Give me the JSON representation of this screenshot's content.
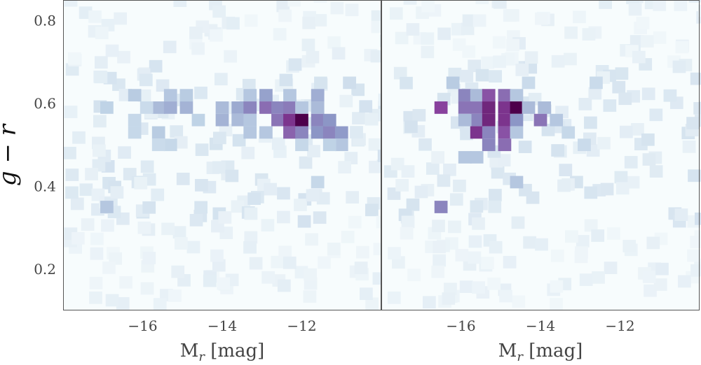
{
  "chart_data": [
    {
      "type": "heatmap",
      "panel": "left",
      "xlabel": "M$_r$ [mag]",
      "xlabel_main": "M",
      "xlabel_sub": "r",
      "xlabel_unit": " [mag]",
      "ylabel": "g − r",
      "xlim": [
        -18.0,
        -10.0
      ],
      "ylim": [
        0.1,
        0.85
      ],
      "x_reversed": true,
      "xticks": [
        -16,
        -14,
        -12
      ],
      "xtick_labels": [
        "−16",
        "−14",
        "−12"
      ],
      "yticks": [
        0.2,
        0.4,
        0.6,
        0.8
      ],
      "ytick_labels": [
        "0.2",
        "0.4",
        "0.6",
        "0.8"
      ],
      "grid": false,
      "bin_width_x": 0.33,
      "bin_width_y": 0.03,
      "colormap": [
        "#f7fcfd",
        "#bfd3e6",
        "#8c96c6",
        "#88419d",
        "#4d004b"
      ],
      "cells": [
        {
          "x": -15.6,
          "y": 0.59,
          "v": 0.35
        },
        {
          "x": -15.3,
          "y": 0.59,
          "v": 0.4
        },
        {
          "x": -14.9,
          "y": 0.59,
          "v": 0.38
        },
        {
          "x": -14.0,
          "y": 0.59,
          "v": 0.35
        },
        {
          "x": -13.6,
          "y": 0.59,
          "v": 0.42
        },
        {
          "x": -13.3,
          "y": 0.59,
          "v": 0.55
        },
        {
          "x": -12.9,
          "y": 0.59,
          "v": 0.62
        },
        {
          "x": -12.6,
          "y": 0.59,
          "v": 0.55
        },
        {
          "x": -12.3,
          "y": 0.59,
          "v": 0.58
        },
        {
          "x": -12.0,
          "y": 0.59,
          "v": 0.3
        },
        {
          "x": -11.6,
          "y": 0.59,
          "v": 0.35
        },
        {
          "x": -12.6,
          "y": 0.56,
          "v": 0.6
        },
        {
          "x": -12.3,
          "y": 0.56,
          "v": 0.8
        },
        {
          "x": -12.0,
          "y": 0.56,
          "v": 1.0
        },
        {
          "x": -11.6,
          "y": 0.56,
          "v": 0.55
        },
        {
          "x": -11.3,
          "y": 0.56,
          "v": 0.5
        },
        {
          "x": -13.6,
          "y": 0.56,
          "v": 0.35
        },
        {
          "x": -13.3,
          "y": 0.56,
          "v": 0.3
        },
        {
          "x": -14.0,
          "y": 0.56,
          "v": 0.38
        },
        {
          "x": -12.3,
          "y": 0.53,
          "v": 0.65
        },
        {
          "x": -12.0,
          "y": 0.53,
          "v": 0.55
        },
        {
          "x": -11.6,
          "y": 0.53,
          "v": 0.5
        },
        {
          "x": -11.3,
          "y": 0.53,
          "v": 0.55
        },
        {
          "x": -11.0,
          "y": 0.53,
          "v": 0.48
        },
        {
          "x": -12.9,
          "y": 0.53,
          "v": 0.3
        },
        {
          "x": -13.3,
          "y": 0.53,
          "v": 0.3
        },
        {
          "x": -15.6,
          "y": 0.53,
          "v": 0.28
        },
        {
          "x": -16.2,
          "y": 0.53,
          "v": 0.22
        },
        {
          "x": -16.9,
          "y": 0.59,
          "v": 0.25
        },
        {
          "x": -16.2,
          "y": 0.62,
          "v": 0.28
        },
        {
          "x": -15.3,
          "y": 0.62,
          "v": 0.3
        },
        {
          "x": -14.9,
          "y": 0.62,
          "v": 0.28
        },
        {
          "x": -13.3,
          "y": 0.62,
          "v": 0.3
        },
        {
          "x": -12.9,
          "y": 0.62,
          "v": 0.45
        },
        {
          "x": -12.3,
          "y": 0.62,
          "v": 0.3
        },
        {
          "x": -11.6,
          "y": 0.62,
          "v": 0.4
        },
        {
          "x": -11.0,
          "y": 0.5,
          "v": 0.3
        },
        {
          "x": -11.3,
          "y": 0.5,
          "v": 0.25
        },
        {
          "x": -12.0,
          "y": 0.5,
          "v": 0.22
        },
        {
          "x": -16.9,
          "y": 0.35,
          "v": 0.3
        },
        {
          "x": -16.2,
          "y": 0.56,
          "v": 0.22
        },
        {
          "x": -15.9,
          "y": 0.59,
          "v": 0.2
        },
        {
          "x": -14.6,
          "y": 0.56,
          "v": 0.25
        },
        {
          "x": -15.3,
          "y": 0.5,
          "v": 0.22
        },
        {
          "x": -15.6,
          "y": 0.5,
          "v": 0.2
        },
        {
          "x": -11.6,
          "y": 0.41,
          "v": 0.22
        },
        {
          "x": -10.8,
          "y": 0.65,
          "v": 0.18
        }
      ]
    },
    {
      "type": "heatmap",
      "panel": "right",
      "xlabel": "M$_r$ [mag]",
      "xlabel_main": "M",
      "xlabel_sub": "r",
      "xlabel_unit": " [mag]",
      "xlim": [
        -18.0,
        -10.0
      ],
      "ylim": [
        0.1,
        0.85
      ],
      "x_reversed": true,
      "xticks": [
        -16,
        -14,
        -12
      ],
      "xtick_labels": [
        "−16",
        "−14",
        "−12"
      ],
      "grid": false,
      "bin_width_x": 0.33,
      "bin_width_y": 0.03,
      "colormap": [
        "#f7fcfd",
        "#bfd3e6",
        "#8c96c6",
        "#88419d",
        "#4d004b"
      ],
      "cells": [
        {
          "x": -16.5,
          "y": 0.59,
          "v": 0.75
        },
        {
          "x": -15.9,
          "y": 0.59,
          "v": 0.6
        },
        {
          "x": -15.6,
          "y": 0.59,
          "v": 0.6
        },
        {
          "x": -15.3,
          "y": 0.59,
          "v": 0.85
        },
        {
          "x": -14.9,
          "y": 0.59,
          "v": 0.8
        },
        {
          "x": -14.6,
          "y": 0.59,
          "v": 1.0
        },
        {
          "x": -14.3,
          "y": 0.59,
          "v": 0.35
        },
        {
          "x": -13.9,
          "y": 0.59,
          "v": 0.35
        },
        {
          "x": -15.6,
          "y": 0.56,
          "v": 0.55
        },
        {
          "x": -15.3,
          "y": 0.56,
          "v": 0.85
        },
        {
          "x": -14.9,
          "y": 0.56,
          "v": 0.8
        },
        {
          "x": -14.6,
          "y": 0.56,
          "v": 0.5
        },
        {
          "x": -14.0,
          "y": 0.56,
          "v": 0.6
        },
        {
          "x": -13.6,
          "y": 0.56,
          "v": 0.3
        },
        {
          "x": -15.6,
          "y": 0.53,
          "v": 0.8
        },
        {
          "x": -15.3,
          "y": 0.53,
          "v": 0.55
        },
        {
          "x": -14.9,
          "y": 0.53,
          "v": 0.7
        },
        {
          "x": -14.6,
          "y": 0.53,
          "v": 0.3
        },
        {
          "x": -15.3,
          "y": 0.5,
          "v": 0.55
        },
        {
          "x": -14.9,
          "y": 0.5,
          "v": 0.62
        },
        {
          "x": -15.9,
          "y": 0.62,
          "v": 0.55
        },
        {
          "x": -15.6,
          "y": 0.62,
          "v": 0.35
        },
        {
          "x": -15.3,
          "y": 0.62,
          "v": 0.7
        },
        {
          "x": -14.9,
          "y": 0.62,
          "v": 0.62
        },
        {
          "x": -14.6,
          "y": 0.62,
          "v": 0.3
        },
        {
          "x": -15.9,
          "y": 0.56,
          "v": 0.35
        },
        {
          "x": -15.9,
          "y": 0.47,
          "v": 0.3
        },
        {
          "x": -15.6,
          "y": 0.47,
          "v": 0.3
        },
        {
          "x": -16.5,
          "y": 0.35,
          "v": 0.55
        },
        {
          "x": -14.6,
          "y": 0.41,
          "v": 0.3
        },
        {
          "x": -13.3,
          "y": 0.53,
          "v": 0.22
        },
        {
          "x": -12.9,
          "y": 0.5,
          "v": 0.2
        },
        {
          "x": -16.2,
          "y": 0.65,
          "v": 0.28
        },
        {
          "x": -14.3,
          "y": 0.65,
          "v": 0.2
        },
        {
          "x": -12.6,
          "y": 0.65,
          "v": 0.2
        }
      ]
    }
  ]
}
